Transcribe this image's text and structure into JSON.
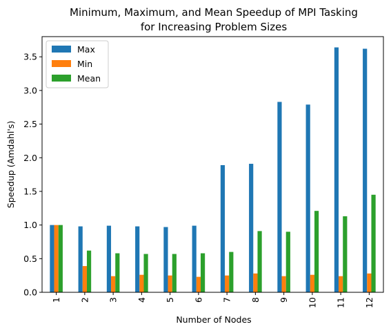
{
  "chart_data": {
    "type": "bar",
    "title": "Minimum, Maximum, and Mean Speedup of MPI Tasking",
    "subtitle": "for Increasing Problem Sizes",
    "xlabel": "Number of Nodes",
    "ylabel": "Speedup (Amdahl's)",
    "categories": [
      "1",
      "2",
      "3",
      "4",
      "5",
      "6",
      "7",
      "8",
      "9",
      "10",
      "11",
      "12"
    ],
    "ylim": [
      0,
      3.8
    ],
    "yticks": [
      "0.0",
      "0.5",
      "1.0",
      "1.5",
      "2.0",
      "2.5",
      "3.0",
      "3.5"
    ],
    "grid": false,
    "legend_position": "top-left",
    "series": [
      {
        "name": "Max",
        "color": "#1f77b4",
        "values": [
          1.0,
          0.98,
          0.99,
          0.98,
          0.97,
          0.99,
          1.89,
          1.91,
          2.83,
          2.79,
          3.64,
          3.62
        ]
      },
      {
        "name": "Min",
        "color": "#ff7f0e",
        "values": [
          1.0,
          0.39,
          0.24,
          0.26,
          0.25,
          0.23,
          0.25,
          0.28,
          0.24,
          0.26,
          0.24,
          0.28
        ]
      },
      {
        "name": "Mean",
        "color": "#2ca02c",
        "values": [
          1.0,
          0.62,
          0.58,
          0.57,
          0.57,
          0.58,
          0.6,
          0.91,
          0.9,
          1.21,
          1.13,
          1.45
        ]
      }
    ]
  }
}
